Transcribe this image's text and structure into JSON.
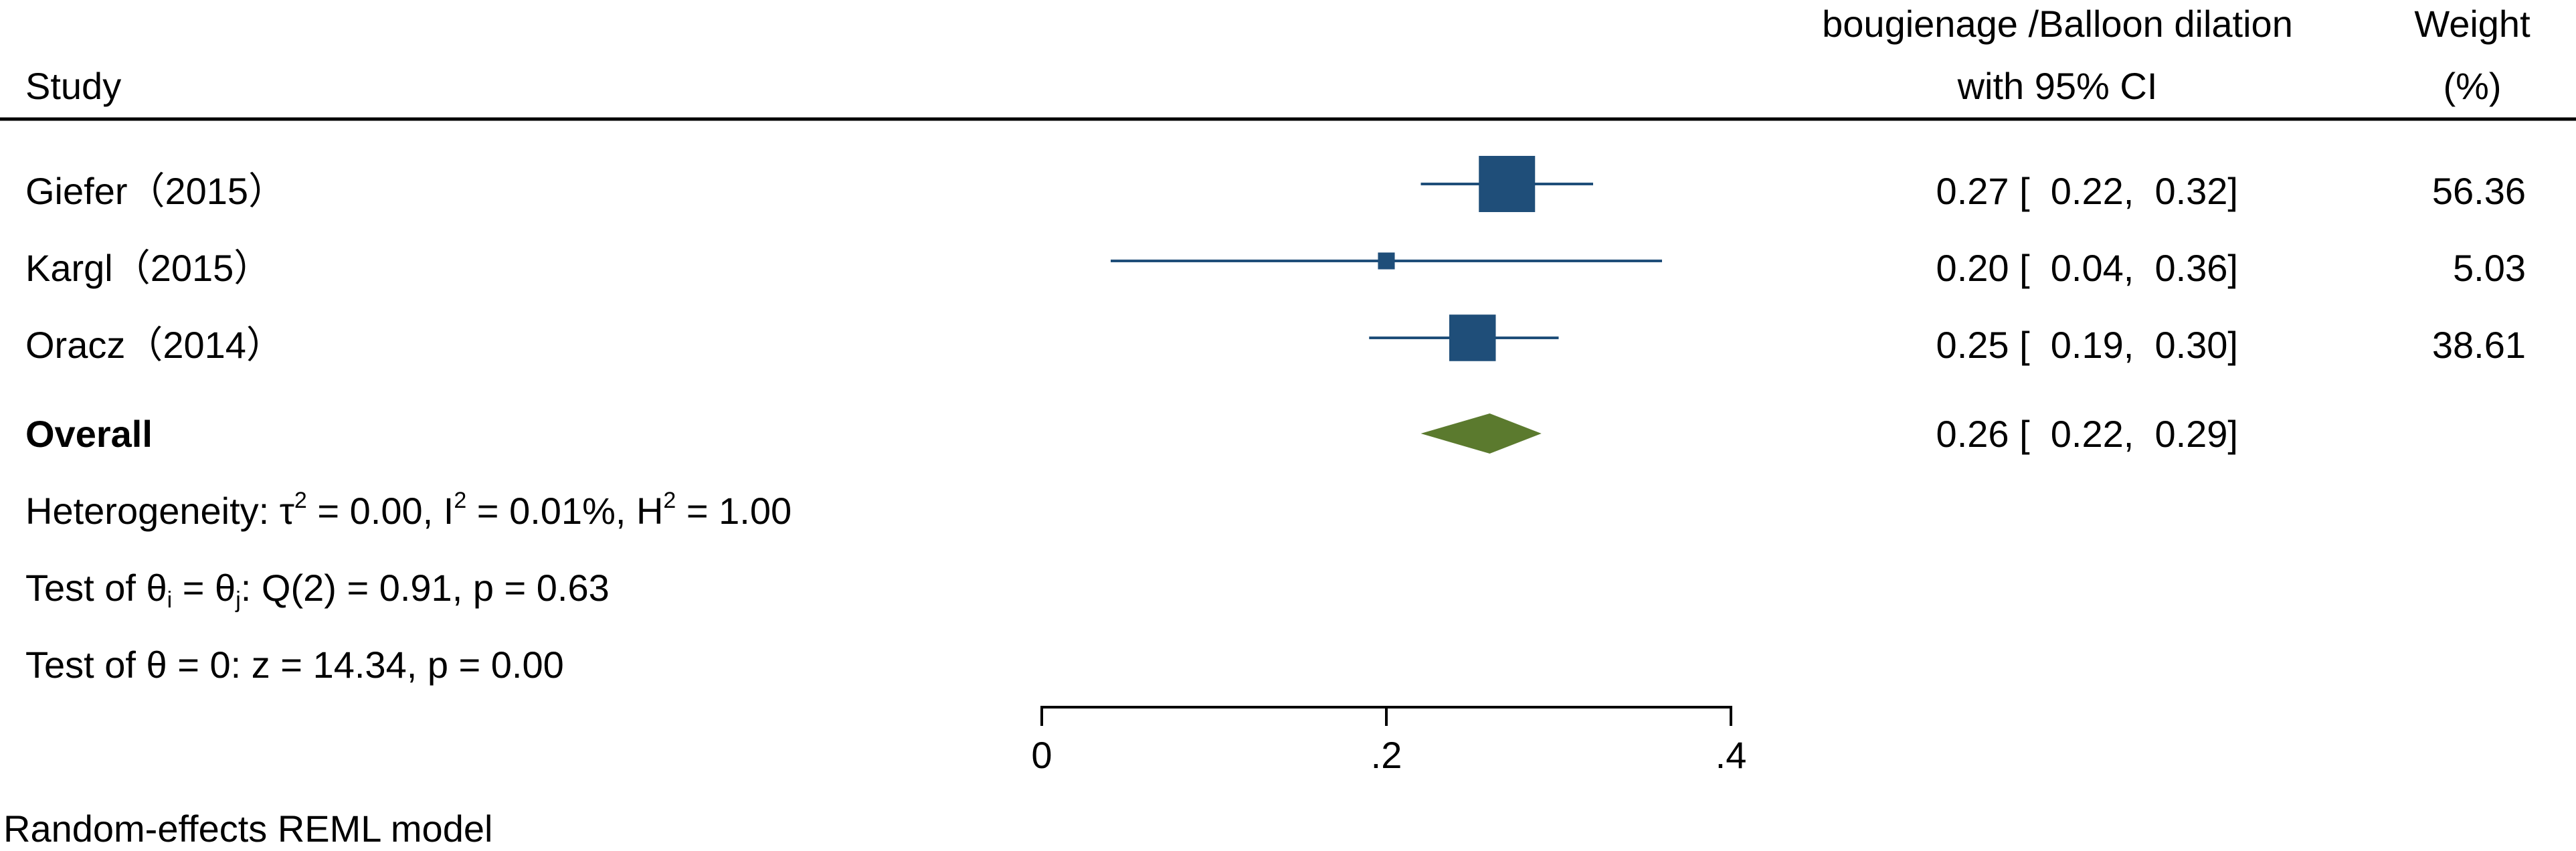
{
  "chart_data": {
    "type": "forest",
    "header": {
      "study": "Study",
      "effect_line1": "bougienage /Balloon dilation",
      "effect_line2": "with 95% CI",
      "weight_line1": "Weight",
      "weight_line2": "(%)"
    },
    "studies": [
      {
        "label": "Giefer（2015）",
        "est": 0.27,
        "lo": 0.22,
        "hi": 0.32,
        "weight": 56.36,
        "ci_text": "0.27 [  0.22,  0.32]",
        "weight_text": "56.36"
      },
      {
        "label": "Kargl（2015）",
        "est": 0.2,
        "lo": 0.04,
        "hi": 0.36,
        "weight": 5.03,
        "ci_text": "0.20 [  0.04,  0.36]",
        "weight_text": "5.03"
      },
      {
        "label": "Oracz（2014）",
        "est": 0.25,
        "lo": 0.19,
        "hi": 0.3,
        "weight": 38.61,
        "ci_text": "0.25 [  0.19,  0.30]",
        "weight_text": "38.61"
      }
    ],
    "overall": {
      "label": "Overall",
      "est": 0.26,
      "lo": 0.22,
      "hi": 0.29,
      "ci_text": "0.26 [  0.22,  0.29]"
    },
    "heterogeneity": {
      "prefix": "Heterogeneity: τ",
      "sup1": "2",
      "mid1": " = 0.00, I",
      "sup2": "2",
      "mid2": " = 0.01%, H",
      "sup3": "2",
      "end": " = 1.00"
    },
    "test_het": {
      "a": "Test of θ",
      "sub_i": "i",
      "b": " = θ",
      "sub_j": "j",
      "c": ": Q(2) = 0.91, p = 0.63"
    },
    "test_zero": "Test of θ = 0: z = 14.34, p = 0.00",
    "x_axis": {
      "range": [
        0,
        0.4
      ],
      "ticks": [
        0,
        0.2,
        0.4
      ],
      "tick_labels": [
        "0",
        ".2",
        ".4"
      ]
    },
    "footnote": "Random-effects REML model",
    "colors": {
      "marker": "#1f4e79",
      "ci_line": "#1f4e79",
      "diamond": "#5b7a2e",
      "rule": "#000000"
    }
  }
}
